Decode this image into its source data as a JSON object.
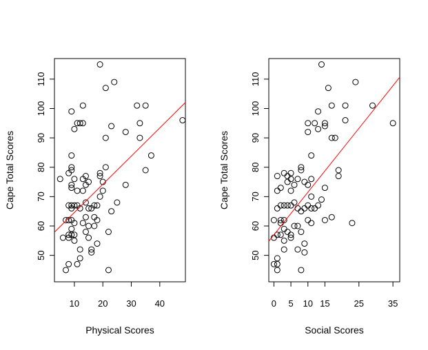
{
  "chart_data": [
    {
      "type": "scatter",
      "title": "",
      "xlabel": "Physical Scores",
      "ylabel": "Cape Total Scores",
      "xlim": [
        3,
        49
      ],
      "ylim": [
        41,
        117
      ],
      "xticks": [
        10,
        20,
        30,
        40
      ],
      "yticks": [
        50,
        60,
        70,
        80,
        90,
        100,
        110
      ],
      "regression_line": {
        "intercept": 55.0,
        "slope": 0.96,
        "color": "#ff0000"
      },
      "points": [
        [
          5,
          76
        ],
        [
          6,
          56
        ],
        [
          7,
          62
        ],
        [
          7,
          45
        ],
        [
          8,
          62
        ],
        [
          8,
          57
        ],
        [
          8,
          47
        ],
        [
          8,
          78
        ],
        [
          8,
          67
        ],
        [
          8,
          56
        ],
        [
          9,
          62
        ],
        [
          9,
          57
        ],
        [
          9,
          99
        ],
        [
          9,
          84
        ],
        [
          9,
          80
        ],
        [
          9,
          79
        ],
        [
          9,
          74
        ],
        [
          9,
          73
        ],
        [
          9,
          67
        ],
        [
          9,
          66
        ],
        [
          9,
          59
        ],
        [
          10,
          93
        ],
        [
          10,
          76
        ],
        [
          10,
          67
        ],
        [
          10,
          61
        ],
        [
          10,
          57
        ],
        [
          10,
          55
        ],
        [
          11,
          95
        ],
        [
          11,
          72
        ],
        [
          11,
          67
        ],
        [
          11,
          47
        ],
        [
          12,
          95
        ],
        [
          12,
          66
        ],
        [
          12,
          52
        ],
        [
          12,
          49
        ],
        [
          13,
          101
        ],
        [
          13,
          95
        ],
        [
          13,
          76
        ],
        [
          13,
          61
        ],
        [
          13,
          72
        ],
        [
          14,
          77
        ],
        [
          14,
          74
        ],
        [
          14,
          68
        ],
        [
          14,
          63
        ],
        [
          14,
          58
        ],
        [
          15,
          75
        ],
        [
          15,
          66
        ],
        [
          15,
          60
        ],
        [
          15,
          56
        ],
        [
          16,
          66
        ],
        [
          16,
          52
        ],
        [
          16,
          51
        ],
        [
          17,
          67
        ],
        [
          17,
          63
        ],
        [
          17,
          60
        ],
        [
          18,
          67
        ],
        [
          18,
          62
        ],
        [
          18,
          54
        ],
        [
          19,
          115
        ],
        [
          19,
          78
        ],
        [
          19,
          77
        ],
        [
          19,
          70
        ],
        [
          20,
          75
        ],
        [
          20,
          72
        ],
        [
          21,
          107
        ],
        [
          21,
          90
        ],
        [
          21,
          80
        ],
        [
          22,
          58
        ],
        [
          22,
          45
        ],
        [
          23,
          94
        ],
        [
          23,
          65
        ],
        [
          24,
          109
        ],
        [
          25,
          68
        ],
        [
          28,
          92
        ],
        [
          28,
          74
        ],
        [
          32,
          101
        ],
        [
          33,
          95
        ],
        [
          33,
          90
        ],
        [
          35,
          101
        ],
        [
          35,
          79
        ],
        [
          37,
          84
        ],
        [
          48,
          96
        ]
      ]
    },
    {
      "type": "scatter",
      "title": "",
      "xlabel": "Social Scores",
      "ylabel": "Cape Total Scores",
      "xlim": [
        -1.5,
        37
      ],
      "ylim": [
        41,
        117
      ],
      "xticks": [
        0,
        5,
        10,
        15,
        25,
        35
      ],
      "yticks": [
        50,
        60,
        70,
        80,
        90,
        100,
        110
      ],
      "regression_line": {
        "intercept": 57.0,
        "slope": 1.45,
        "color": "#ff0000"
      },
      "points": [
        [
          0,
          62
        ],
        [
          0,
          56
        ],
        [
          0,
          47
        ],
        [
          1,
          77
        ],
        [
          1,
          72
        ],
        [
          1,
          66
        ],
        [
          1,
          57
        ],
        [
          1,
          49
        ],
        [
          1,
          45
        ],
        [
          1,
          47
        ],
        [
          2,
          73
        ],
        [
          2,
          67
        ],
        [
          2,
          62
        ],
        [
          2,
          57
        ],
        [
          2,
          61
        ],
        [
          3,
          78
        ],
        [
          3,
          67
        ],
        [
          3,
          62
        ],
        [
          3,
          59
        ],
        [
          3,
          55
        ],
        [
          3,
          52
        ],
        [
          4,
          77
        ],
        [
          4,
          75
        ],
        [
          4,
          67
        ],
        [
          4,
          58
        ],
        [
          5,
          78
        ],
        [
          5,
          76
        ],
        [
          5,
          72
        ],
        [
          5,
          67
        ],
        [
          5,
          57
        ],
        [
          5,
          56
        ],
        [
          6,
          74
        ],
        [
          6,
          68
        ],
        [
          6,
          60
        ],
        [
          7,
          76
        ],
        [
          7,
          66
        ],
        [
          7,
          60
        ],
        [
          7,
          52
        ],
        [
          8,
          80
        ],
        [
          8,
          79
        ],
        [
          8,
          65
        ],
        [
          8,
          58
        ],
        [
          8,
          45
        ],
        [
          9,
          75
        ],
        [
          9,
          66
        ],
        [
          9,
          54
        ],
        [
          9,
          51
        ],
        [
          10,
          95
        ],
        [
          10,
          92
        ],
        [
          10,
          74
        ],
        [
          10,
          67
        ],
        [
          10,
          62
        ],
        [
          11,
          84
        ],
        [
          11,
          76
        ],
        [
          11,
          70
        ],
        [
          11,
          66
        ],
        [
          11,
          61
        ],
        [
          12,
          95
        ],
        [
          12,
          66
        ],
        [
          13,
          99
        ],
        [
          13,
          93
        ],
        [
          13,
          67
        ],
        [
          14,
          115
        ],
        [
          14,
          69
        ],
        [
          15,
          95
        ],
        [
          15,
          94
        ],
        [
          15,
          73
        ],
        [
          15,
          62
        ],
        [
          16,
          107
        ],
        [
          17,
          101
        ],
        [
          17,
          90
        ],
        [
          17,
          63
        ],
        [
          18,
          90
        ],
        [
          19,
          79
        ],
        [
          19,
          77
        ],
        [
          21,
          101
        ],
        [
          21,
          96
        ],
        [
          23,
          61
        ],
        [
          24,
          109
        ],
        [
          29,
          101
        ],
        [
          35,
          95
        ]
      ]
    }
  ]
}
